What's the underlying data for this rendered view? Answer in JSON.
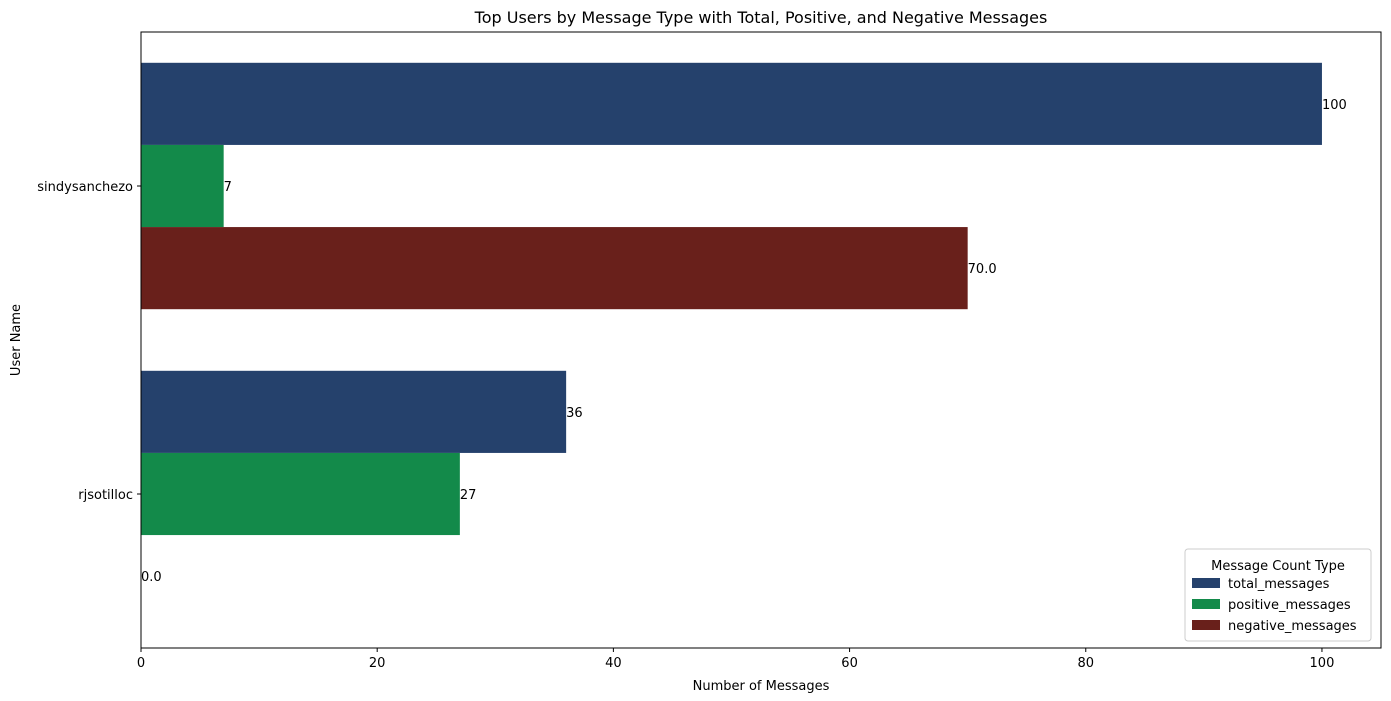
{
  "chart_data": {
    "type": "bar",
    "orientation": "horizontal",
    "title": "Top Users by Message Type with Total, Positive, and Negative Messages",
    "xlabel": "Number of Messages",
    "ylabel": "User Name",
    "categories": [
      "sindysanchezo",
      "rjsotilloc"
    ],
    "xlim": [
      0,
      105
    ],
    "xticks": [
      0,
      20,
      40,
      60,
      80,
      100
    ],
    "xtick_labels": [
      "0",
      "20",
      "40",
      "60",
      "80",
      "100"
    ],
    "grid": false,
    "legend_title": "Message Count Type",
    "legend_position": "lower-right",
    "series": [
      {
        "name": "total_messages",
        "color": "#25416c",
        "values": [
          100,
          36
        ],
        "labels": [
          "100",
          "36"
        ]
      },
      {
        "name": "positive_messages",
        "color": "#138a4a",
        "values": [
          7,
          27
        ],
        "labels": [
          "7",
          "27"
        ]
      },
      {
        "name": "negative_messages",
        "color": "#69201b",
        "values": [
          70,
          0
        ],
        "labels": [
          "70.0",
          "0.0"
        ]
      }
    ]
  }
}
